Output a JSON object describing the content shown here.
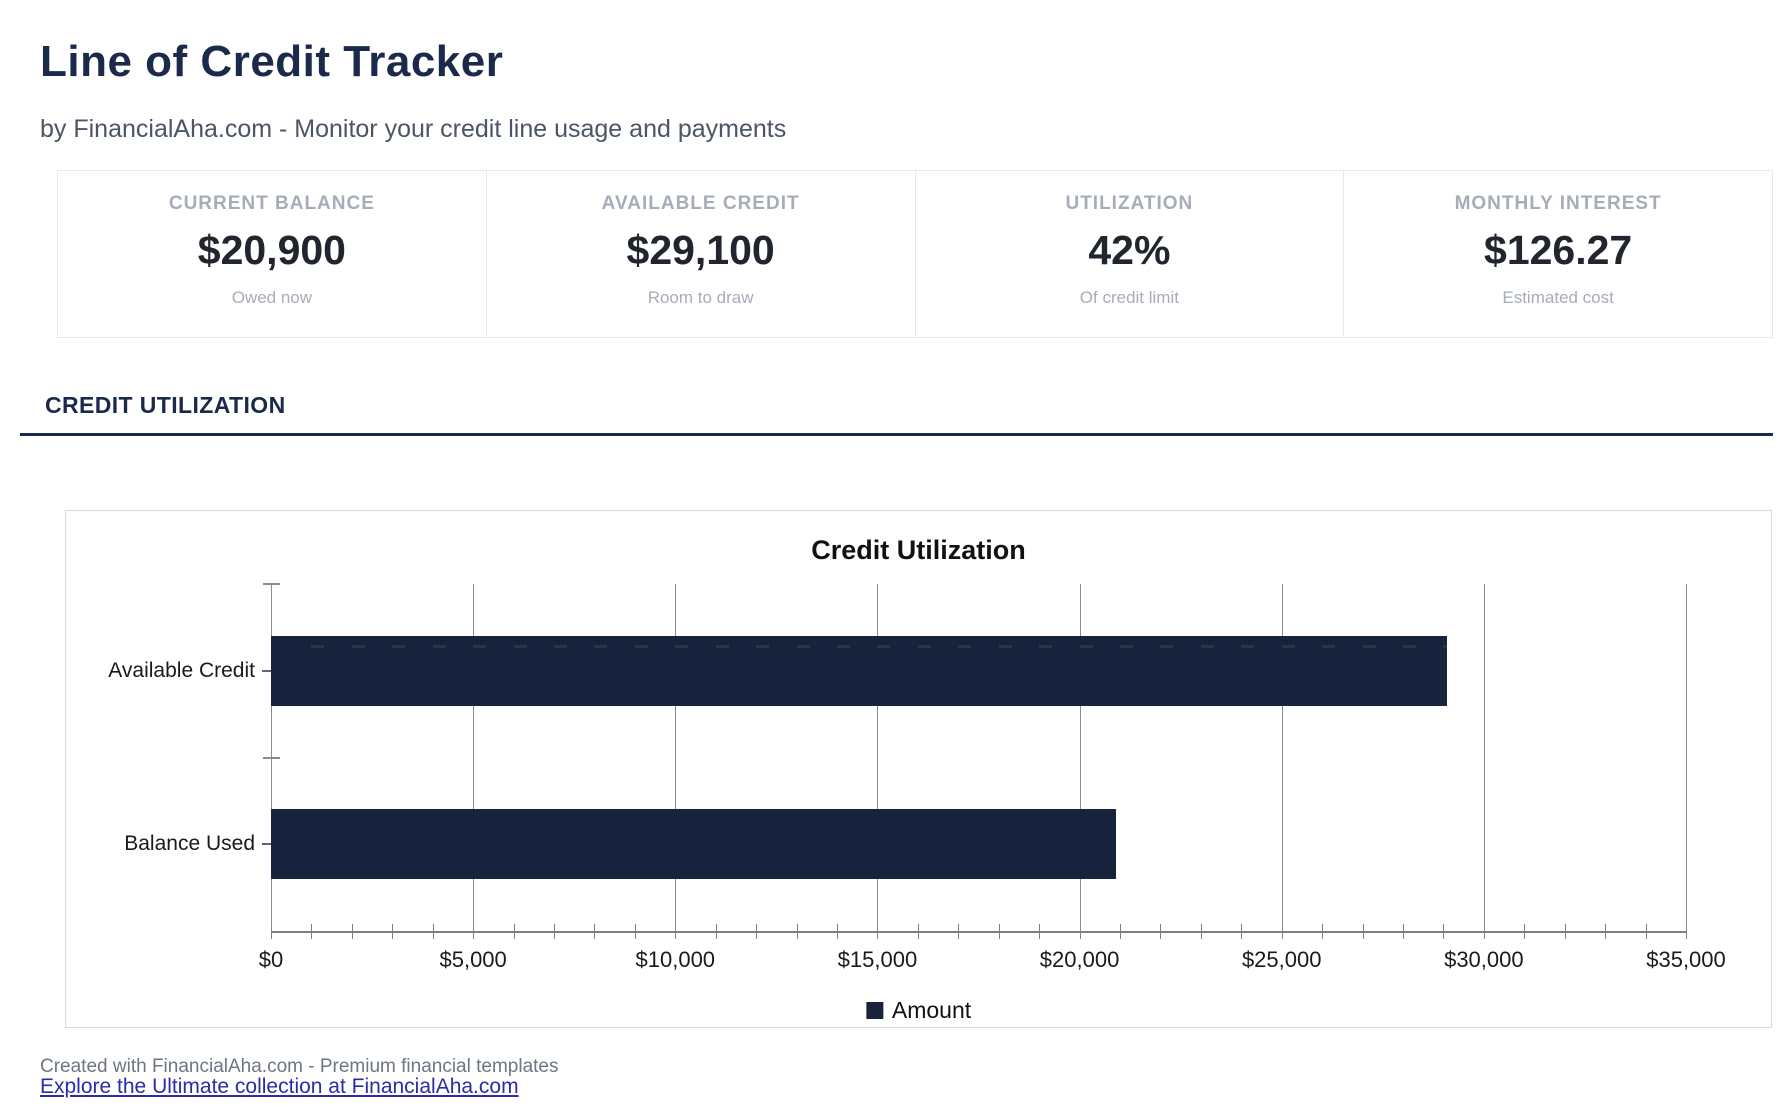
{
  "page": {
    "title": "Line of Credit Tracker",
    "subtitle": "by FinancialAha.com - Monitor your credit line usage and payments",
    "footer": "Created with FinancialAha.com - Premium financial templates",
    "link_text": "Explore the Ultimate collection at FinancialAha.com"
  },
  "stats": {
    "cards": [
      {
        "label": "CURRENT BALANCE",
        "value": "$20,900",
        "caption": "Owed now"
      },
      {
        "label": "AVAILABLE CREDIT",
        "value": "$29,100",
        "caption": "Room to draw"
      },
      {
        "label": "UTILIZATION",
        "value": "42%",
        "caption": "Of credit limit"
      },
      {
        "label": "MONTHLY INTEREST",
        "value": "$126.27",
        "caption": "Estimated cost"
      }
    ]
  },
  "section": {
    "heading": "CREDIT UTILIZATION"
  },
  "chart_data": {
    "type": "bar",
    "orientation": "horizontal",
    "title": "Credit Utilization",
    "categories": [
      "Available Credit",
      "Balance Used"
    ],
    "series": [
      {
        "name": "Amount",
        "values": [
          29100,
          20900
        ]
      }
    ],
    "x_axis": {
      "min": 0,
      "max": 35000,
      "major_step": 5000,
      "minor_step": 1000,
      "tick_labels": [
        "$0",
        "$5,000",
        "$10,000",
        "$15,000",
        "$20,000",
        "$25,000",
        "$30,000",
        "$35,000"
      ]
    },
    "legend": {
      "position": "bottom",
      "entries": [
        "Amount"
      ]
    },
    "grid": true
  },
  "colors": {
    "accent_navy": "#1b2a4a",
    "bar_navy": "#17223c",
    "link_blue": "#2a2ca8",
    "grid_gray": "#8c8c8c",
    "muted_gray": "#a6acb8"
  }
}
